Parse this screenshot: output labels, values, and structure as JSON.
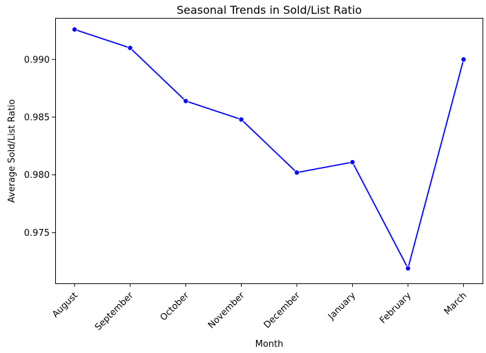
{
  "chart_data": {
    "type": "line",
    "title": "Seasonal Trends in Sold/List Ratio",
    "xlabel": "Month",
    "ylabel": "Average Sold/List Ratio",
    "categories": [
      "August",
      "September",
      "October",
      "November",
      "December",
      "January",
      "February",
      "March"
    ],
    "series": [
      {
        "values": [
          0.9926,
          0.991,
          0.9864,
          0.9848,
          0.9802,
          0.9811,
          0.9719,
          0.99
        ],
        "color": "#0000ff",
        "marker": "circle"
      }
    ],
    "ylim": [
      0.9706,
      0.9936
    ],
    "yticks": [
      "0.975",
      "0.980",
      "0.985",
      "0.990"
    ],
    "ytick_values": [
      0.975,
      0.98,
      0.985,
      0.99
    ],
    "grid": false,
    "legend": "none"
  }
}
